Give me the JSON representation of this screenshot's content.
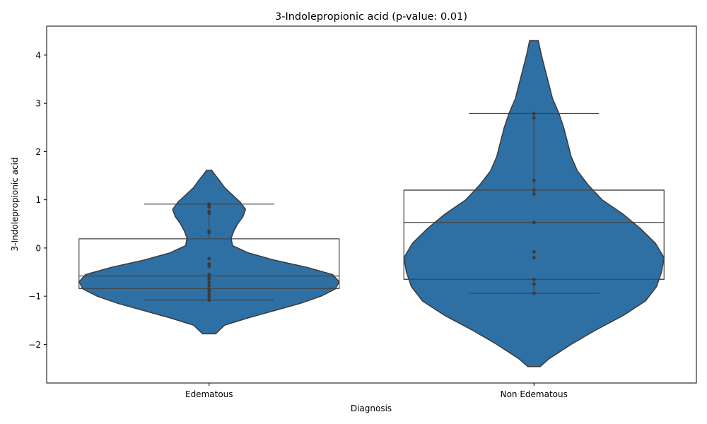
{
  "chart_data": {
    "type": "violin",
    "title": "3-Indolepropionic acid (p-value: 0.01)",
    "xlabel": "Diagnosis",
    "ylabel": "3-Indolepropionic acid",
    "ylim": [
      -2.8,
      4.6
    ],
    "yticks": [
      -2,
      -1,
      0,
      1,
      2,
      3,
      4
    ],
    "ytick_labels": [
      "−2",
      "−1",
      "0",
      "1",
      "2",
      "3",
      "4"
    ],
    "grid": false,
    "colors": {
      "violin_fill": "#2e6fa4",
      "violin_edge": "#3b3b3b",
      "box_edge": "#444444",
      "points": "#3b3b3b"
    },
    "categories": [
      "Edematous",
      "Non Edematous"
    ],
    "groups": [
      {
        "name": "Edematous",
        "violin_range": [
          -1.78,
          1.61
        ],
        "density": [
          [
            -1.78,
            0.05
          ],
          [
            -1.6,
            0.12
          ],
          [
            -1.45,
            0.3
          ],
          [
            -1.3,
            0.5
          ],
          [
            -1.15,
            0.7
          ],
          [
            -1.0,
            0.86
          ],
          [
            -0.85,
            0.97
          ],
          [
            -0.7,
            1.0
          ],
          [
            -0.55,
            0.95
          ],
          [
            -0.4,
            0.75
          ],
          [
            -0.25,
            0.5
          ],
          [
            -0.1,
            0.3
          ],
          [
            0.05,
            0.18
          ],
          [
            0.2,
            0.17
          ],
          [
            0.35,
            0.19
          ],
          [
            0.5,
            0.22
          ],
          [
            0.65,
            0.26
          ],
          [
            0.8,
            0.28
          ],
          [
            0.95,
            0.24
          ],
          [
            1.1,
            0.18
          ],
          [
            1.25,
            0.12
          ],
          [
            1.4,
            0.08
          ],
          [
            1.52,
            0.045
          ],
          [
            1.61,
            0.02
          ]
        ],
        "box": {
          "q1": -0.84,
          "median": -0.58,
          "q3": 0.19,
          "whisker_low": -1.08,
          "whisker_high": 0.91
        },
        "points": [
          0.91,
          0.88,
          0.85,
          0.75,
          0.72,
          0.35,
          0.32,
          -0.22,
          -0.33,
          -0.38,
          -0.55,
          -0.6,
          -0.65,
          -0.72,
          -0.78,
          -0.85,
          -0.9,
          -0.97,
          -1.02,
          -1.08
        ]
      },
      {
        "name": "Non Edematous",
        "violin_range": [
          -2.46,
          4.3
        ],
        "density": [
          [
            -2.46,
            0.05
          ],
          [
            -2.3,
            0.12
          ],
          [
            -2.0,
            0.3
          ],
          [
            -1.7,
            0.5
          ],
          [
            -1.4,
            0.72
          ],
          [
            -1.1,
            0.9
          ],
          [
            -0.8,
            0.99
          ],
          [
            -0.5,
            1.03
          ],
          [
            -0.2,
            1.05
          ],
          [
            0.1,
            0.98
          ],
          [
            0.4,
            0.86
          ],
          [
            0.7,
            0.72
          ],
          [
            1.0,
            0.55
          ],
          [
            1.3,
            0.44
          ],
          [
            1.6,
            0.35
          ],
          [
            1.9,
            0.3
          ],
          [
            2.2,
            0.27
          ],
          [
            2.5,
            0.24
          ],
          [
            2.8,
            0.2
          ],
          [
            3.1,
            0.15
          ],
          [
            3.4,
            0.12
          ],
          [
            3.7,
            0.09
          ],
          [
            4.0,
            0.06
          ],
          [
            4.3,
            0.035
          ]
        ],
        "box": {
          "q1": -0.65,
          "median": 0.53,
          "q3": 1.2,
          "whisker_low": -0.94,
          "whisker_high": 2.79
        },
        "points": [
          2.79,
          2.7,
          1.4,
          1.2,
          1.12,
          0.53,
          -0.08,
          -0.2,
          -0.65,
          -0.75,
          -0.94
        ]
      }
    ]
  }
}
